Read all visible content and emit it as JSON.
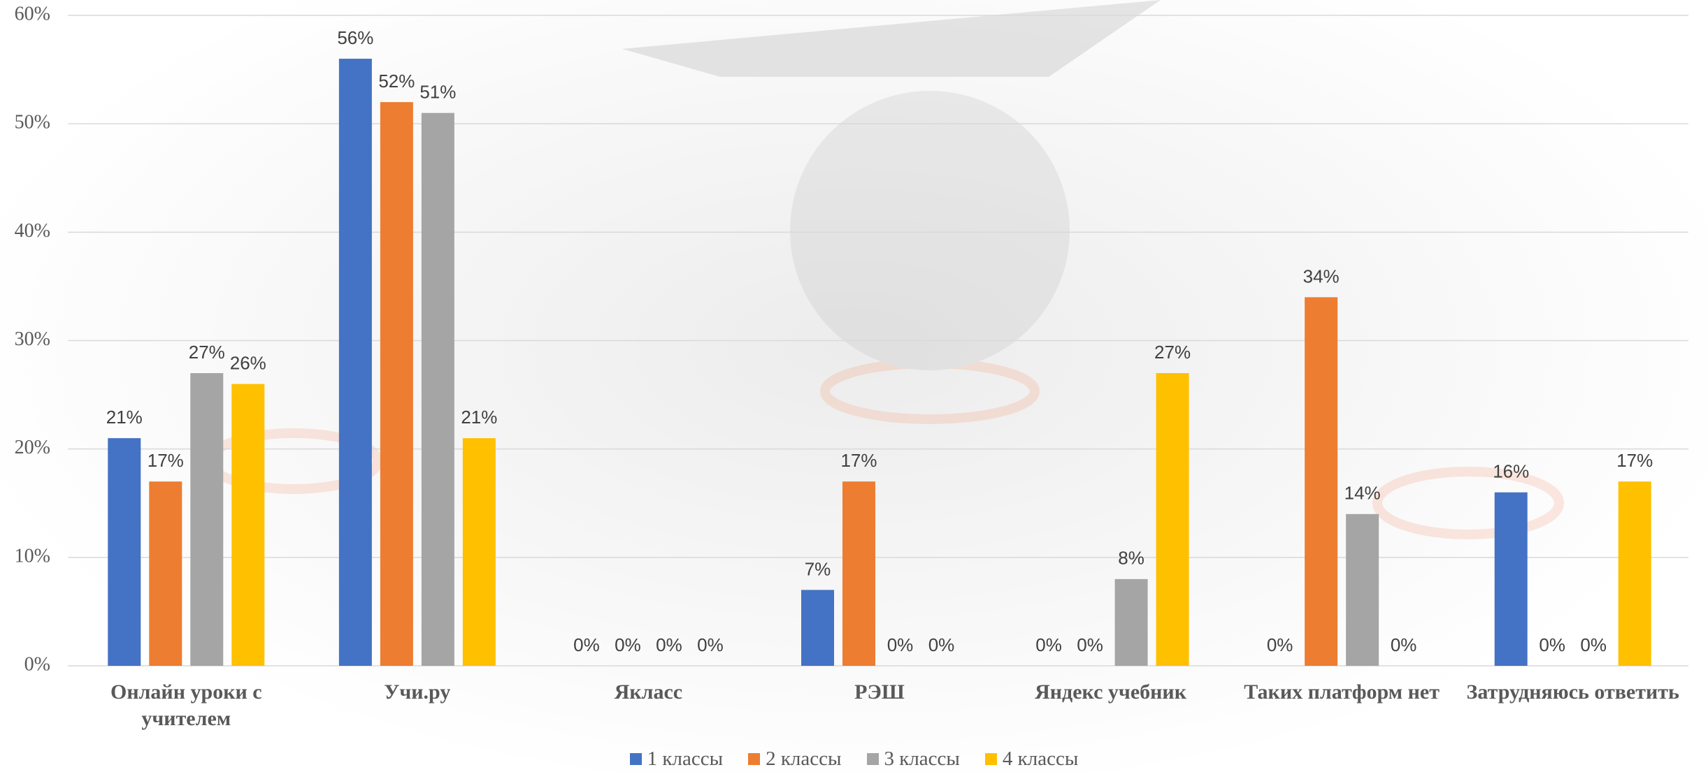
{
  "chart_data": {
    "type": "bar",
    "categories": [
      "Онлайн уроки с учителем",
      "Учи.ру",
      "Якласс",
      "РЭШ",
      "Яндекс учебник",
      "Таких платформ нет",
      "Затрудняюсь ответить"
    ],
    "series": [
      {
        "name": "1 классы",
        "color": "#4472c4",
        "values": [
          21,
          56,
          0,
          7,
          0,
          0,
          16
        ],
        "value_labels": [
          "21%",
          "56%",
          "0%",
          "7%",
          "0%",
          "0%",
          "16%"
        ]
      },
      {
        "name": "2 классы",
        "color": "#ed7d31",
        "values": [
          17,
          52,
          0,
          17,
          0,
          34,
          0
        ],
        "value_labels": [
          "17%",
          "52%",
          "0%",
          "17%",
          "0%",
          "34%",
          "0%"
        ]
      },
      {
        "name": "3 классы",
        "color": "#a5a5a5",
        "values": [
          27,
          51,
          0,
          0,
          8,
          14,
          0
        ],
        "value_labels": [
          "27%",
          "51%",
          "0%",
          "0%",
          "8%",
          "14%",
          "0%"
        ]
      },
      {
        "name": "4 классы",
        "color": "#ffc000",
        "values": [
          26,
          21,
          0,
          0,
          27,
          0,
          17
        ],
        "value_labels": [
          "26%",
          "21%",
          "0%",
          "0%",
          "27%",
          "0%",
          "17%"
        ]
      }
    ],
    "ylim": [
      0,
      60
    ],
    "yticks": [
      {
        "value": 0,
        "label": "0%"
      },
      {
        "value": 10,
        "label": "10%"
      },
      {
        "value": 20,
        "label": "20%"
      },
      {
        "value": 30,
        "label": "30%"
      },
      {
        "value": 40,
        "label": "40%"
      },
      {
        "value": 50,
        "label": "50%"
      },
      {
        "value": 60,
        "label": "60%"
      }
    ],
    "grid": true,
    "legend": "bottom"
  }
}
